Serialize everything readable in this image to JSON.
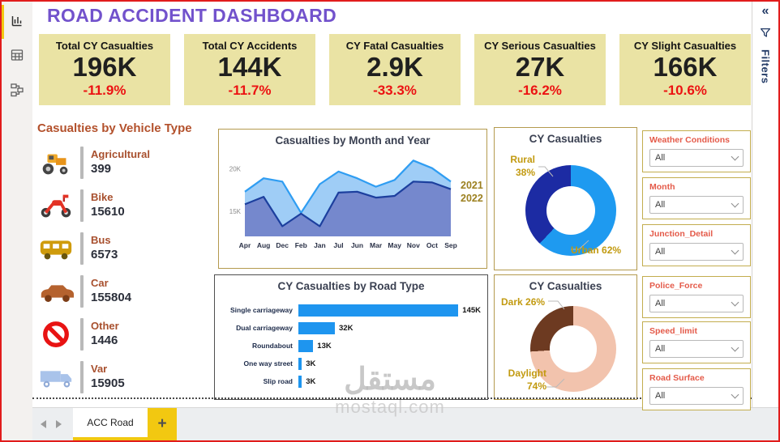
{
  "title": "ROAD ACCIDENT DASHBOARD",
  "kpis": [
    {
      "label": "Total CY Casualties",
      "value": "196K",
      "delta": "-11.9%"
    },
    {
      "label": "Total CY Accidents",
      "value": "144K",
      "delta": "-11.7%"
    },
    {
      "label": "CY Fatal Casualties",
      "value": "2.9K",
      "delta": "-33.3%"
    },
    {
      "label": "CY Serious Casualties",
      "value": "27K",
      "delta": "-16.2%"
    },
    {
      "label": "CY Slight Casualties",
      "value": "166K",
      "delta": "-10.6%"
    }
  ],
  "vehicle_panel": {
    "title": "Casualties by Vehicle Type",
    "items": [
      {
        "icon": "tractor-icon",
        "label": "Agricultural",
        "value": "399"
      },
      {
        "icon": "motorcycle-icon",
        "label": "Bike",
        "value": "15610"
      },
      {
        "icon": "bus-icon",
        "label": "Bus",
        "value": "6573"
      },
      {
        "icon": "car-icon",
        "label": "Car",
        "value": "155804"
      },
      {
        "icon": "no-entry-icon",
        "label": "Other",
        "value": "1446"
      },
      {
        "icon": "truck-icon",
        "label": "Var",
        "value": "15905"
      }
    ]
  },
  "chart_data": [
    {
      "id": "month_year",
      "type": "area",
      "title": "Casualties by Month and Year",
      "x": [
        "Apr",
        "Aug",
        "Dec",
        "Feb",
        "Jan",
        "Jul",
        "Jun",
        "Mar",
        "May",
        "Nov",
        "Oct",
        "Sep"
      ],
      "series": [
        {
          "name": "2021",
          "values": [
            17.3,
            18.9,
            18.5,
            14.8,
            18.2,
            19.7,
            18.9,
            17.9,
            18.7,
            21.0,
            20.1,
            18.5
          ],
          "line_color": "#2f9df2",
          "fill_color": "#9fcdf6"
        },
        {
          "name": "2022",
          "values": [
            15.8,
            16.7,
            13.2,
            14.7,
            13.2,
            17.2,
            17.3,
            16.6,
            16.8,
            18.5,
            18.4,
            17.6
          ],
          "line_color": "#1c3f9e",
          "fill_color": "#7588cd"
        }
      ],
      "unit": "K",
      "ylim": [
        12,
        21.8
      ],
      "y_ticks": [
        {
          "v": 20,
          "label": "20K"
        },
        {
          "v": 15,
          "label": "15K"
        }
      ],
      "legend_position": "right",
      "legend_color": "#9c8020"
    },
    {
      "id": "road_type",
      "type": "bar",
      "title": "CY Casualties by Road Type",
      "orientation": "horizontal",
      "categories": [
        "Single carriageway",
        "Dual carriageway",
        "Roundabout",
        "One way street",
        "Slip road"
      ],
      "values": [
        145,
        32,
        13,
        3,
        3
      ],
      "value_labels": [
        "145K",
        "32K",
        "13K",
        "3K",
        "3K"
      ],
      "bar_color": "#1e95ef",
      "xlim": [
        0,
        160
      ]
    },
    {
      "id": "area_type",
      "type": "donut",
      "title": "CY Casualties",
      "slices": [
        {
          "label": "Urban",
          "pct": 62,
          "pct_text": "62%",
          "color": "#1e9af0"
        },
        {
          "label": "Rural",
          "pct": 38,
          "pct_text": "38%",
          "color": "#1c2ba3"
        }
      ]
    },
    {
      "id": "light_condition",
      "type": "donut",
      "title": "CY Casualties",
      "slices": [
        {
          "label": "Daylight",
          "pct": 74,
          "pct_text": "74%",
          "color": "#f2c3ad"
        },
        {
          "label": "Dark",
          "pct": 26,
          "pct_text": "26%",
          "color": "#6d3a21"
        }
      ]
    }
  ],
  "slicers": [
    {
      "label": "Weather Conditions",
      "value": "All"
    },
    {
      "label": "Month",
      "value": "All"
    },
    {
      "label": "Junction_Detail",
      "value": "All"
    },
    {
      "label": "Police_Force",
      "value": "All"
    },
    {
      "label": "Speed_limit",
      "value": "All"
    },
    {
      "label": "Road Surface",
      "value": "All"
    }
  ],
  "filters_rail": {
    "collapse_glyph": "«",
    "label": "Filters"
  },
  "tab_bar": {
    "active_tab": "ACC Road",
    "add_button": "+"
  },
  "watermark": {
    "logo": "مستقل",
    "domain": "mostaql.com"
  },
  "colors": {
    "accent_yellow": "#f2c811",
    "title_purple": "#7252cc",
    "kpi_background": "#eae3a4",
    "delta_red": "#ec1212",
    "section_brown": "#b3512c",
    "gold_border": "#b49a4e",
    "donut_label_gold": "#c29a10",
    "slicer_label_coral": "#e45a49",
    "rail_navy": "#223a66"
  }
}
